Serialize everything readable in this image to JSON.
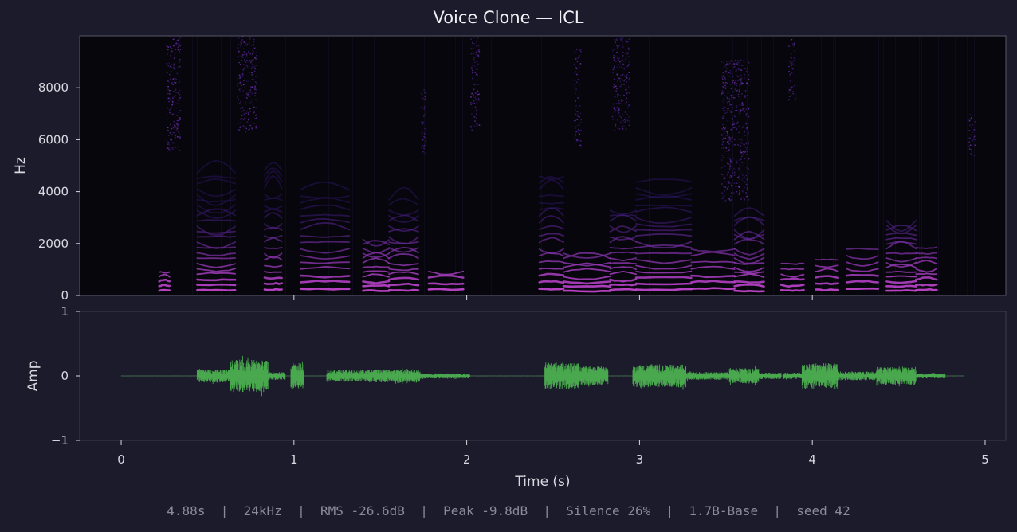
{
  "title": "Voice Clone — ICL",
  "footer": {
    "stats": [
      "4.88s",
      "24kHz",
      "RMS -26.6dB",
      "Peak -9.8dB",
      "Silence 26%",
      "1.7B-Base",
      "seed 42"
    ]
  },
  "colors": {
    "background": "#1b1b2b",
    "spectrogram_bg": "#07060c",
    "spectrogram_low": "#3a1c8a",
    "spectrogram_high": "#d04ad8",
    "waveform": "#4caf50",
    "axes_frame": "#555566"
  },
  "chart_data": [
    {
      "type": "heatmap",
      "name": "spectrogram",
      "ylabel": "Hz",
      "xlabel": "",
      "ylim": [
        0,
        10000
      ],
      "xlim": [
        -0.24,
        5.12
      ],
      "yticks": [
        0,
        2000,
        4000,
        6000,
        8000
      ],
      "xticks": [
        1,
        2,
        3,
        4
      ],
      "grid": false,
      "voiced_segments": [
        {
          "start": 0.22,
          "end": 0.28,
          "top_hz": 900
        },
        {
          "start": 0.44,
          "end": 0.66,
          "top_hz": 4900
        },
        {
          "start": 0.83,
          "end": 0.93,
          "top_hz": 4900
        },
        {
          "start": 1.04,
          "end": 1.32,
          "top_hz": 4300
        },
        {
          "start": 1.4,
          "end": 1.55,
          "top_hz": 2200
        },
        {
          "start": 1.55,
          "end": 1.72,
          "top_hz": 3700
        },
        {
          "start": 1.78,
          "end": 1.98,
          "top_hz": 1100
        },
        {
          "start": 2.42,
          "end": 2.56,
          "top_hz": 4800
        },
        {
          "start": 2.56,
          "end": 2.83,
          "top_hz": 1700
        },
        {
          "start": 2.83,
          "end": 2.98,
          "top_hz": 3300
        },
        {
          "start": 2.98,
          "end": 3.3,
          "top_hz": 4500
        },
        {
          "start": 3.3,
          "end": 3.55,
          "top_hz": 1800
        },
        {
          "start": 3.55,
          "end": 3.72,
          "top_hz": 3200
        },
        {
          "start": 3.82,
          "end": 3.95,
          "top_hz": 1300
        },
        {
          "start": 4.02,
          "end": 4.15,
          "top_hz": 1400
        },
        {
          "start": 4.2,
          "end": 4.38,
          "top_hz": 1900
        },
        {
          "start": 4.43,
          "end": 4.6,
          "top_hz": 3000
        },
        {
          "start": 4.6,
          "end": 4.72,
          "top_hz": 2000
        }
      ],
      "fricative_bursts": [
        {
          "start": 0.26,
          "end": 0.34,
          "low_hz": 5500,
          "high_hz": 10000
        },
        {
          "start": 0.67,
          "end": 0.78,
          "low_hz": 6300,
          "high_hz": 10000
        },
        {
          "start": 1.73,
          "end": 1.76,
          "low_hz": 5500,
          "high_hz": 8000
        },
        {
          "start": 2.02,
          "end": 2.07,
          "low_hz": 6300,
          "high_hz": 10000
        },
        {
          "start": 2.62,
          "end": 2.66,
          "low_hz": 5800,
          "high_hz": 9500
        },
        {
          "start": 2.84,
          "end": 2.94,
          "low_hz": 6300,
          "high_hz": 10000
        },
        {
          "start": 3.47,
          "end": 3.63,
          "low_hz": 3600,
          "high_hz": 9100
        },
        {
          "start": 3.86,
          "end": 3.9,
          "low_hz": 7500,
          "high_hz": 10000
        },
        {
          "start": 4.9,
          "end": 4.94,
          "low_hz": 5300,
          "high_hz": 7000
        }
      ]
    },
    {
      "type": "line",
      "name": "waveform",
      "ylabel": "Amp",
      "xlabel": "Time (s)",
      "ylim": [
        -1,
        1
      ],
      "xlim": [
        -0.24,
        5.12
      ],
      "yticks": [
        -1,
        0,
        1
      ],
      "ytick_labels": [
        "−1",
        "0",
        "1"
      ],
      "xticks": [
        0,
        1,
        2,
        3,
        4,
        5
      ],
      "grid": false,
      "envelope": [
        {
          "start": 0.44,
          "end": 0.63,
          "amp": 0.1
        },
        {
          "start": 0.63,
          "end": 0.85,
          "amp": 0.25
        },
        {
          "start": 0.85,
          "end": 0.95,
          "amp": 0.06
        },
        {
          "start": 0.98,
          "end": 1.06,
          "amp": 0.2
        },
        {
          "start": 1.19,
          "end": 1.43,
          "amp": 0.09
        },
        {
          "start": 1.43,
          "end": 1.73,
          "amp": 0.1
        },
        {
          "start": 1.73,
          "end": 2.02,
          "amp": 0.04
        },
        {
          "start": 2.45,
          "end": 2.65,
          "amp": 0.21
        },
        {
          "start": 2.65,
          "end": 2.82,
          "amp": 0.15
        },
        {
          "start": 2.96,
          "end": 3.27,
          "amp": 0.18
        },
        {
          "start": 3.27,
          "end": 3.52,
          "amp": 0.06
        },
        {
          "start": 3.52,
          "end": 3.69,
          "amp": 0.12
        },
        {
          "start": 3.69,
          "end": 3.82,
          "amp": 0.05
        },
        {
          "start": 3.83,
          "end": 3.94,
          "amp": 0.05
        },
        {
          "start": 3.94,
          "end": 4.15,
          "amp": 0.2
        },
        {
          "start": 4.15,
          "end": 4.37,
          "amp": 0.07
        },
        {
          "start": 4.37,
          "end": 4.6,
          "amp": 0.14
        },
        {
          "start": 4.6,
          "end": 4.77,
          "amp": 0.04
        }
      ]
    }
  ]
}
